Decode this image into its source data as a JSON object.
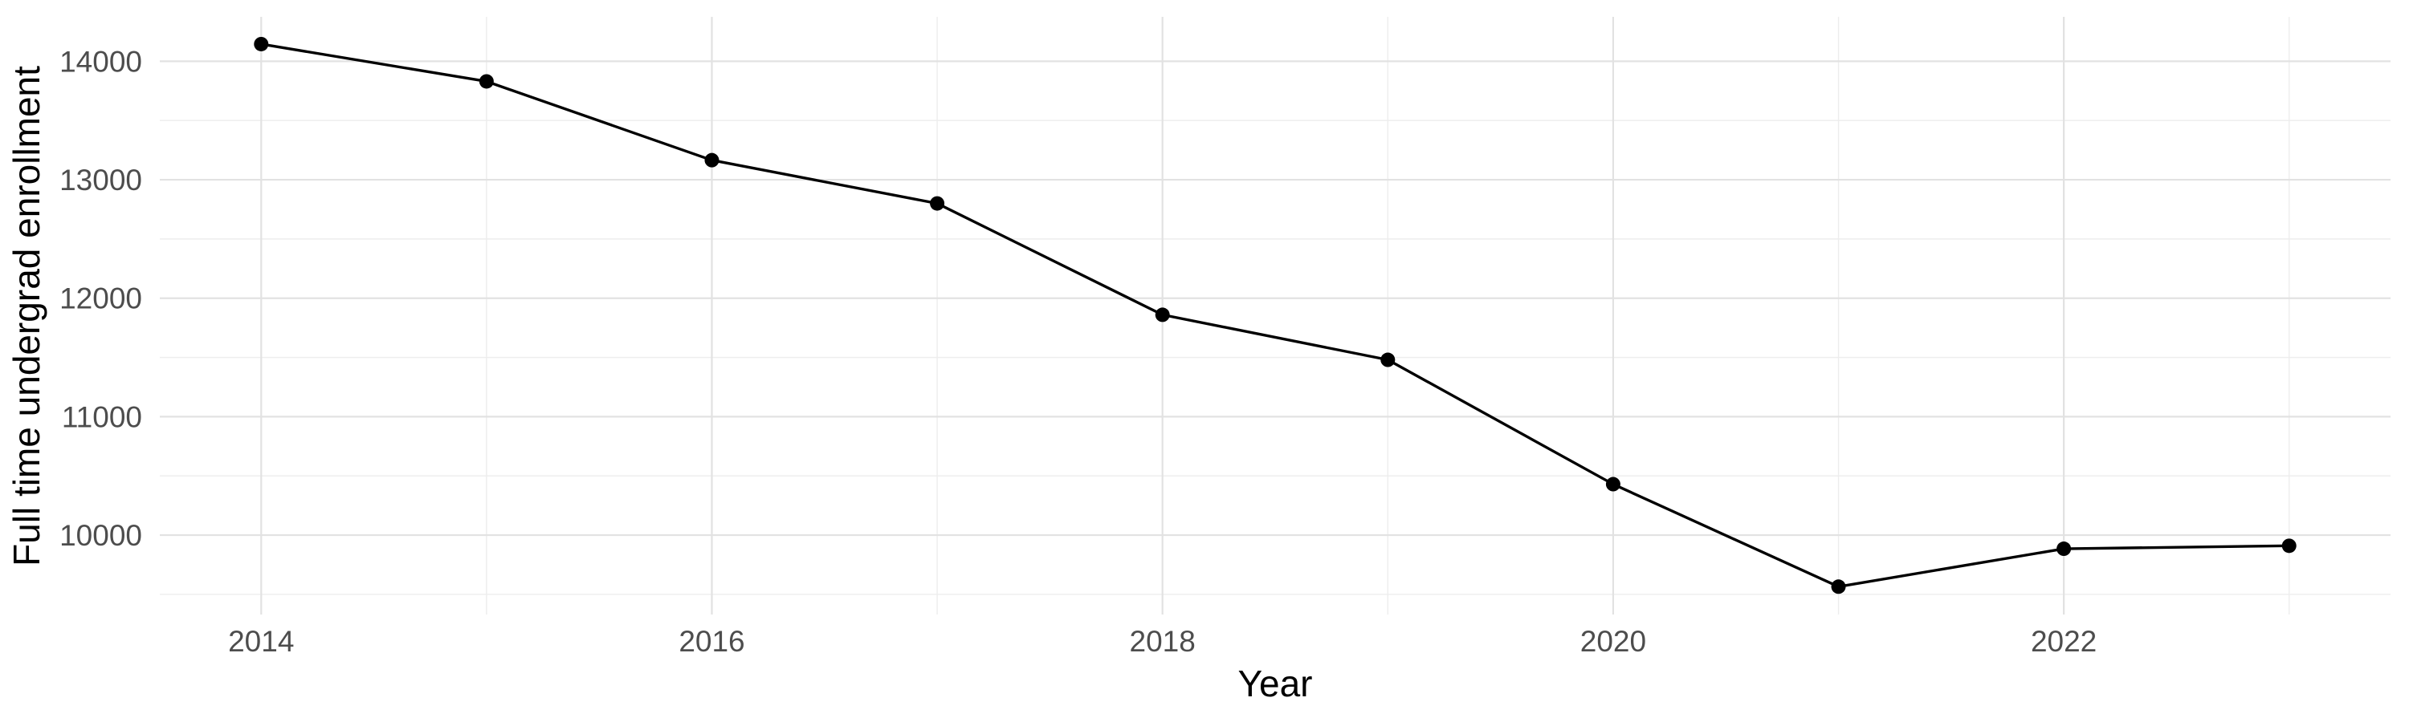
{
  "figure": {
    "background": "#FFFFFF"
  },
  "chart_data": {
    "type": "line",
    "title": "",
    "xlabel": "Year",
    "ylabel": "Full time undergrad enrollment",
    "x": [
      2014,
      2015,
      2016,
      2017,
      2018,
      2019,
      2020,
      2021,
      2022,
      2023
    ],
    "series": [
      {
        "name": "Full time undergrad enrollment",
        "color": "#000000",
        "values": [
          14145,
          13830,
          13165,
          12800,
          11860,
          11480,
          10430,
          9565,
          9885,
          9910
        ]
      }
    ],
    "x_ticks": {
      "major": [
        2014,
        2016,
        2018,
        2020,
        2022
      ],
      "minor": [
        2015,
        2017,
        2019,
        2021,
        2023
      ]
    },
    "y_ticks": {
      "major": [
        14000,
        13000,
        12000,
        11000,
        10000
      ],
      "minor": [
        13500,
        12500,
        11500,
        10500,
        9500
      ]
    },
    "x_range": [
      2013.55,
      2023.45
    ],
    "y_range": [
      9330,
      14375
    ],
    "grid": {
      "on": true,
      "major_color": "#E2E2E2",
      "minor_color": "#EDEDED",
      "major_width": 2.2,
      "minor_width": 1.4
    },
    "style": {
      "tick_label_color": "#4D4D4D",
      "axis_title_color": "#000000",
      "line_width": 3.4,
      "point_radius": 9,
      "point_shape": "circle"
    },
    "legend_position": "none",
    "marker_on_points": true
  }
}
